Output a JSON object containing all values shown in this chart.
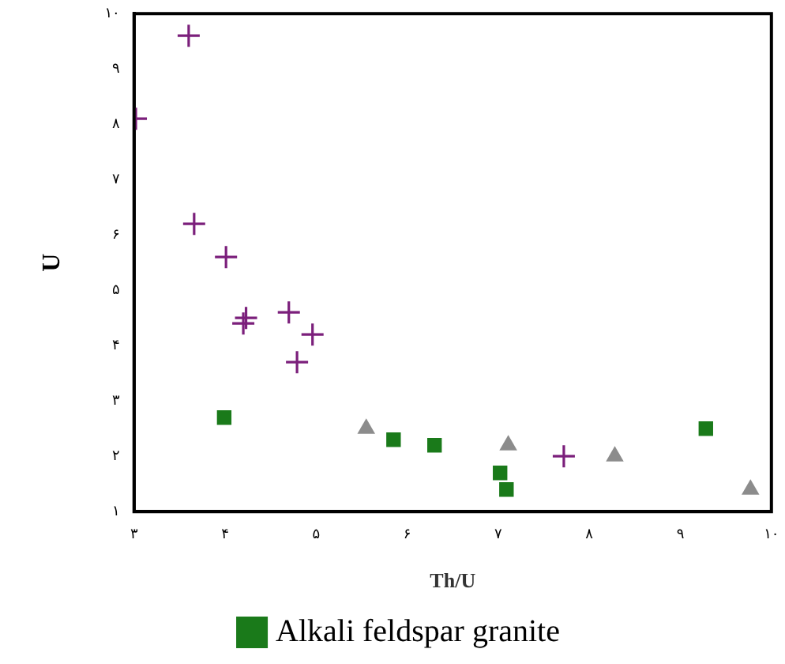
{
  "chart_data": {
    "type": "scatter",
    "xlabel": "Th/U",
    "ylabel": "U",
    "xlim": [
      3,
      10
    ],
    "ylim": [
      1,
      10
    ],
    "xticks": [
      {
        "value": 3,
        "label": "۳"
      },
      {
        "value": 4,
        "label": "۴"
      },
      {
        "value": 5,
        "label": "۵"
      },
      {
        "value": 6,
        "label": "۶"
      },
      {
        "value": 7,
        "label": "۷"
      },
      {
        "value": 8,
        "label": "۸"
      },
      {
        "value": 9,
        "label": "۹"
      },
      {
        "value": 10,
        "label": "۱۰"
      }
    ],
    "yticks": [
      {
        "value": 1,
        "label": "۱"
      },
      {
        "value": 2,
        "label": "۲"
      },
      {
        "value": 3,
        "label": "۳"
      },
      {
        "value": 4,
        "label": "۴"
      },
      {
        "value": 5,
        "label": "۵"
      },
      {
        "value": 6,
        "label": "۶"
      },
      {
        "value": 7,
        "label": "۷"
      },
      {
        "value": 8,
        "label": "۸"
      },
      {
        "value": 9,
        "label": "۹"
      },
      {
        "value": 10,
        "label": "۱۰"
      }
    ],
    "grid": false,
    "legend": "bottom",
    "series": [
      {
        "color": "#7b1f7b",
        "marker": "cross",
        "x": [
          3.6,
          3.02,
          3.66,
          4.01,
          4.23,
          4.2,
          4.7,
          4.96,
          4.79,
          7.72
        ],
        "values": [
          9.6,
          8.1,
          6.2,
          5.6,
          4.5,
          4.4,
          4.6,
          4.2,
          3.7,
          2.0
        ]
      },
      {
        "name": "Alkali feldspar granite",
        "color": "#1a7a1a",
        "marker": "square",
        "x": [
          3.99,
          5.85,
          6.3,
          7.02,
          7.09,
          9.28
        ],
        "values": [
          2.7,
          2.3,
          2.2,
          1.7,
          1.4,
          2.5
        ]
      },
      {
        "color": "#8c8c8c",
        "marker": "triangle",
        "x": [
          5.55,
          7.11,
          8.28,
          9.77
        ],
        "values": [
          2.5,
          2.2,
          2.0,
          1.4
        ]
      }
    ]
  }
}
